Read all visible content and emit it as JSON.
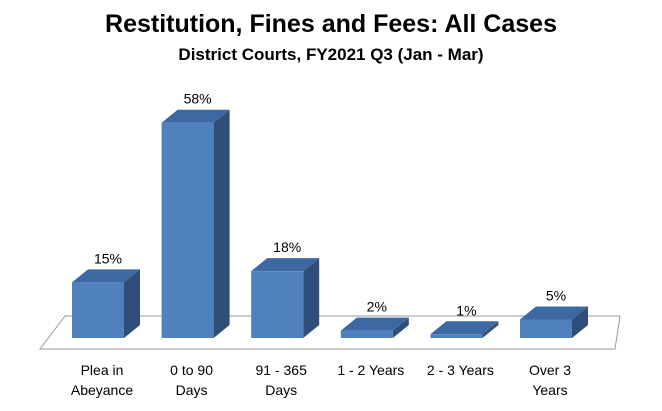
{
  "chart_data": {
    "type": "bar",
    "title": "Restitution, Fines and Fees: All Cases",
    "subtitle": "District Courts, FY2021 Q3 (Jan - Mar)",
    "categories": [
      [
        "Plea in",
        "Abeyance"
      ],
      [
        "0 to 90",
        "Days"
      ],
      [
        "91 - 365",
        "Days"
      ],
      [
        "1 - 2 Years"
      ],
      [
        "2 - 3 Years"
      ],
      [
        "Over 3",
        "Years"
      ]
    ],
    "values": [
      15,
      58,
      18,
      2,
      1,
      5
    ],
    "data_labels": [
      "15%",
      "58%",
      "18%",
      "2%",
      "1%",
      "5%"
    ],
    "unit": "%",
    "ylim": [
      0,
      60
    ],
    "xlabel": "",
    "ylabel": "",
    "grid": false,
    "legend": "none",
    "colors": {
      "bar_front": "#4f81bd",
      "bar_side": "#2f4f7a",
      "bar_top": "#3d69a2",
      "floor_stroke": "#9a9a9a"
    }
  }
}
